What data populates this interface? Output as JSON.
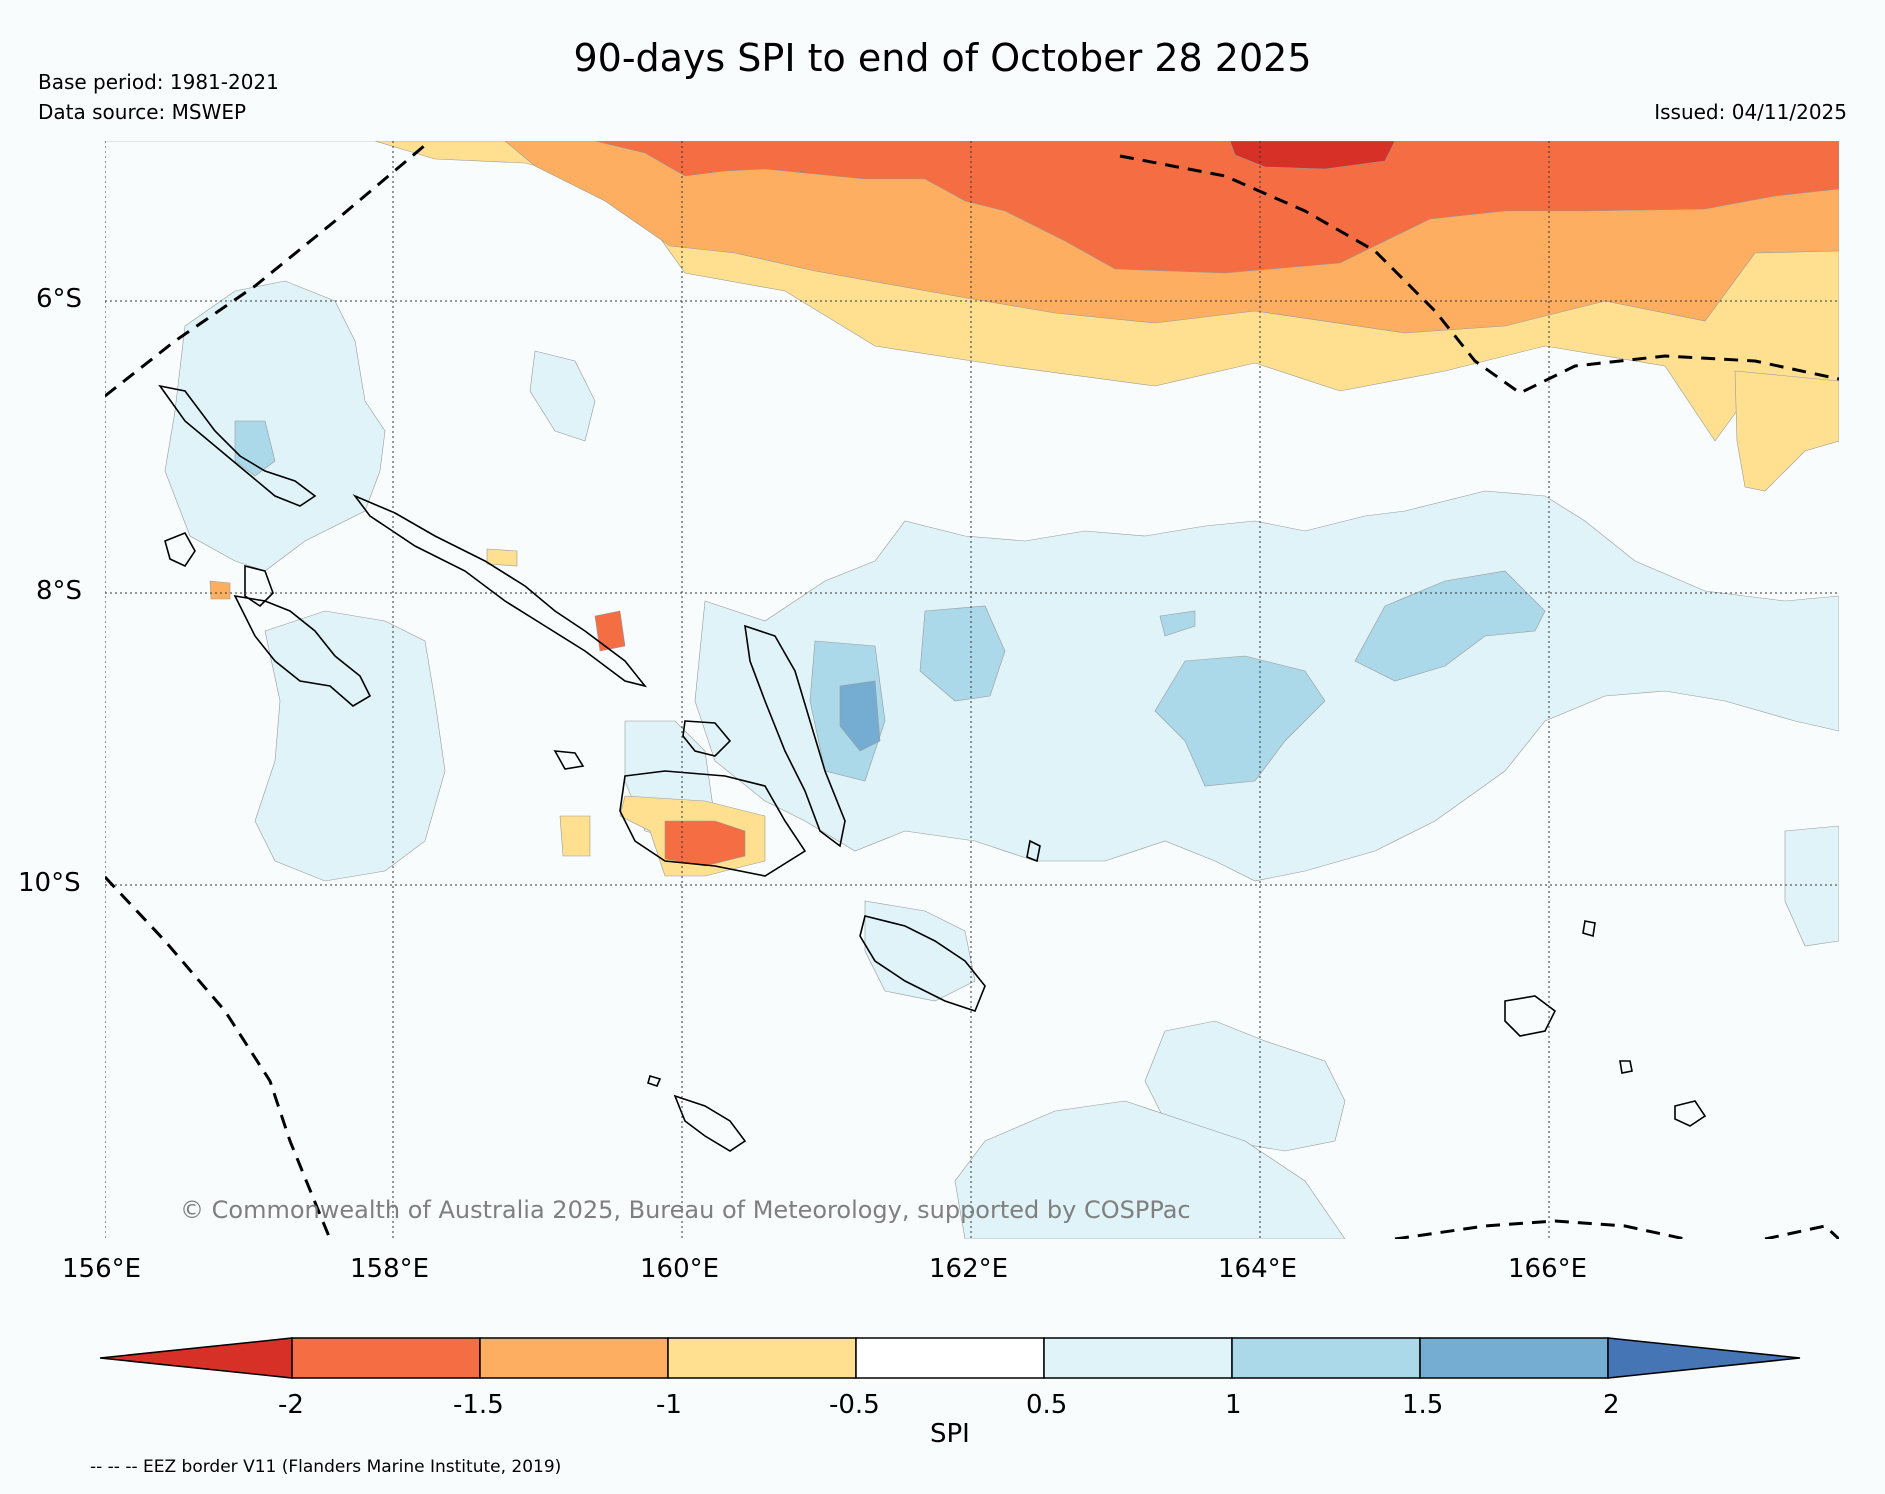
{
  "header": {
    "title": "90-days SPI to end of October 28 2025",
    "base_period": "Base period: 1981-2021",
    "data_source": "Data source: MSWEP",
    "issued": "Issued: 04/11/2025"
  },
  "map": {
    "lat_labels": [
      "6°S",
      "8°S",
      "10°S"
    ],
    "lon_labels": [
      "156°E",
      "158°E",
      "160°E",
      "162°E",
      "164°E",
      "166°E"
    ],
    "copyright": "© Commonwealth of Australia 2025, Bureau of Meteorology, supported by COSPPac"
  },
  "colorbar": {
    "label": "SPI",
    "ticks": [
      "-2",
      "-1.5",
      "-1",
      "-0.5",
      "0.5",
      "1",
      "1.5",
      "2"
    ],
    "colors": [
      "#d73027",
      "#f46d43",
      "#fdae61",
      "#fee090",
      "#ffffff",
      "#e0f3f8",
      "#abd9e9",
      "#74add1",
      "#4575b4"
    ]
  },
  "legend": {
    "eez_note": "-- -- -- EEZ border V11 (Flanders Marine Institute, 2019)"
  }
}
